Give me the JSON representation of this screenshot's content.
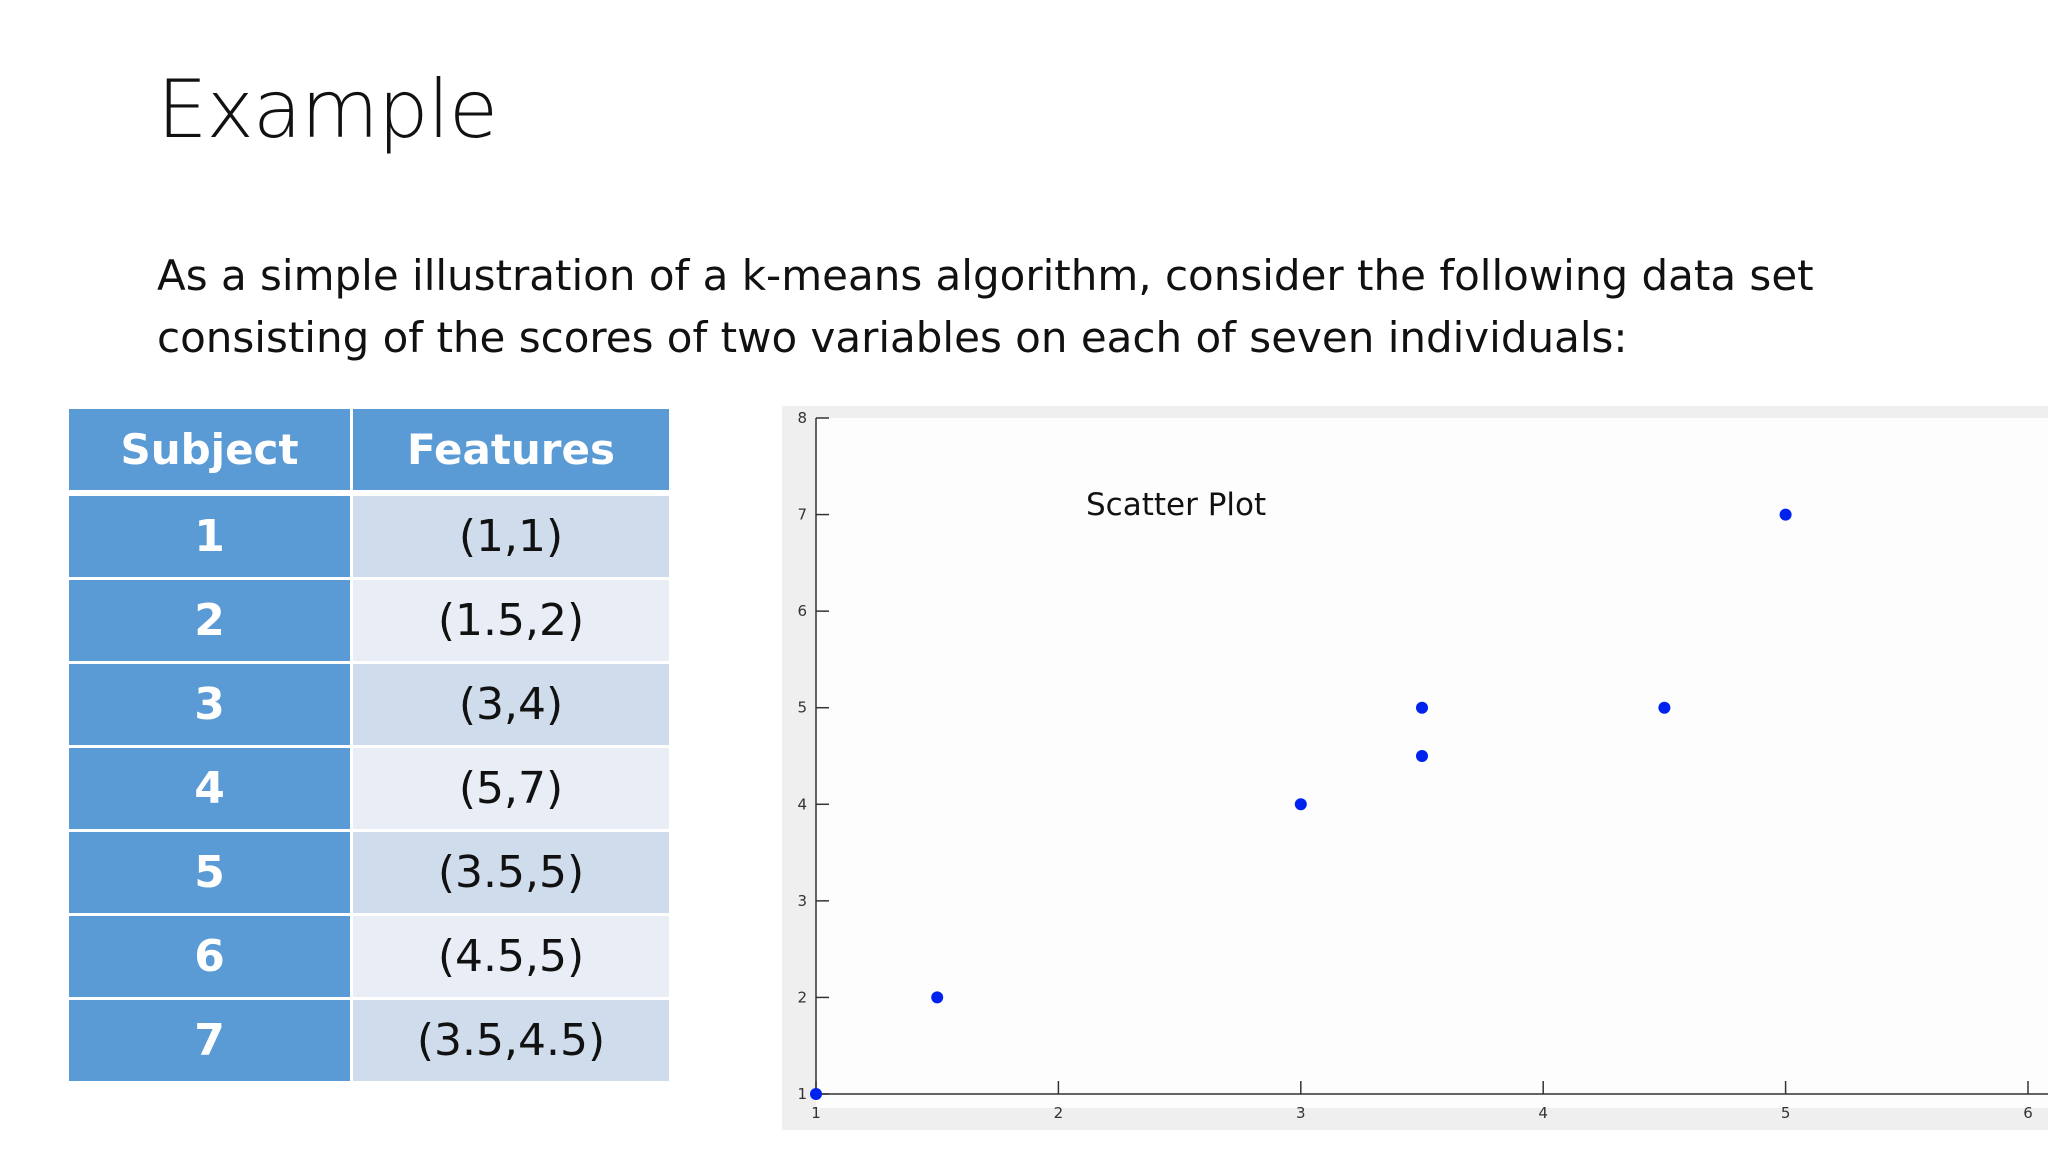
{
  "slide": {
    "title": "Example",
    "intro": "As a simple illustration of a k-means algorithm, consider the following data set consisting of the scores of two variables on each of seven individuals:"
  },
  "table": {
    "headers": [
      "Subject",
      "Features"
    ],
    "rows": [
      {
        "subject": "1",
        "features": "(1,1)"
      },
      {
        "subject": "2",
        "features": "(1.5,2)"
      },
      {
        "subject": "3",
        "features": "(3,4)"
      },
      {
        "subject": "4",
        "features": "(5,7)"
      },
      {
        "subject": "5",
        "features": "(3.5,5)"
      },
      {
        "subject": "6",
        "features": "(4.5,5)"
      },
      {
        "subject": "7",
        "features": "(3.5,4.5)"
      }
    ]
  },
  "chart_data": {
    "type": "scatter",
    "title": "Scatter Plot",
    "xlabel": "",
    "ylabel": "",
    "xlim": [
      1,
      6
    ],
    "ylim": [
      1,
      8
    ],
    "x_ticks": [
      "1",
      "2",
      "3",
      "4",
      "5",
      "6"
    ],
    "y_ticks": [
      "1",
      "2",
      "3",
      "4",
      "5",
      "6",
      "7",
      "8"
    ],
    "grid": false,
    "point_color": "#0022ee",
    "points": [
      {
        "x": 1,
        "y": 1
      },
      {
        "x": 1.5,
        "y": 2
      },
      {
        "x": 3,
        "y": 4
      },
      {
        "x": 5,
        "y": 7
      },
      {
        "x": 3.5,
        "y": 5
      },
      {
        "x": 4.5,
        "y": 5
      },
      {
        "x": 3.5,
        "y": 4.5
      }
    ]
  },
  "colors": {
    "table_header": "#5b9bd5",
    "table_band_odd": "#cfdcec",
    "table_band_even": "#e9eef6"
  }
}
